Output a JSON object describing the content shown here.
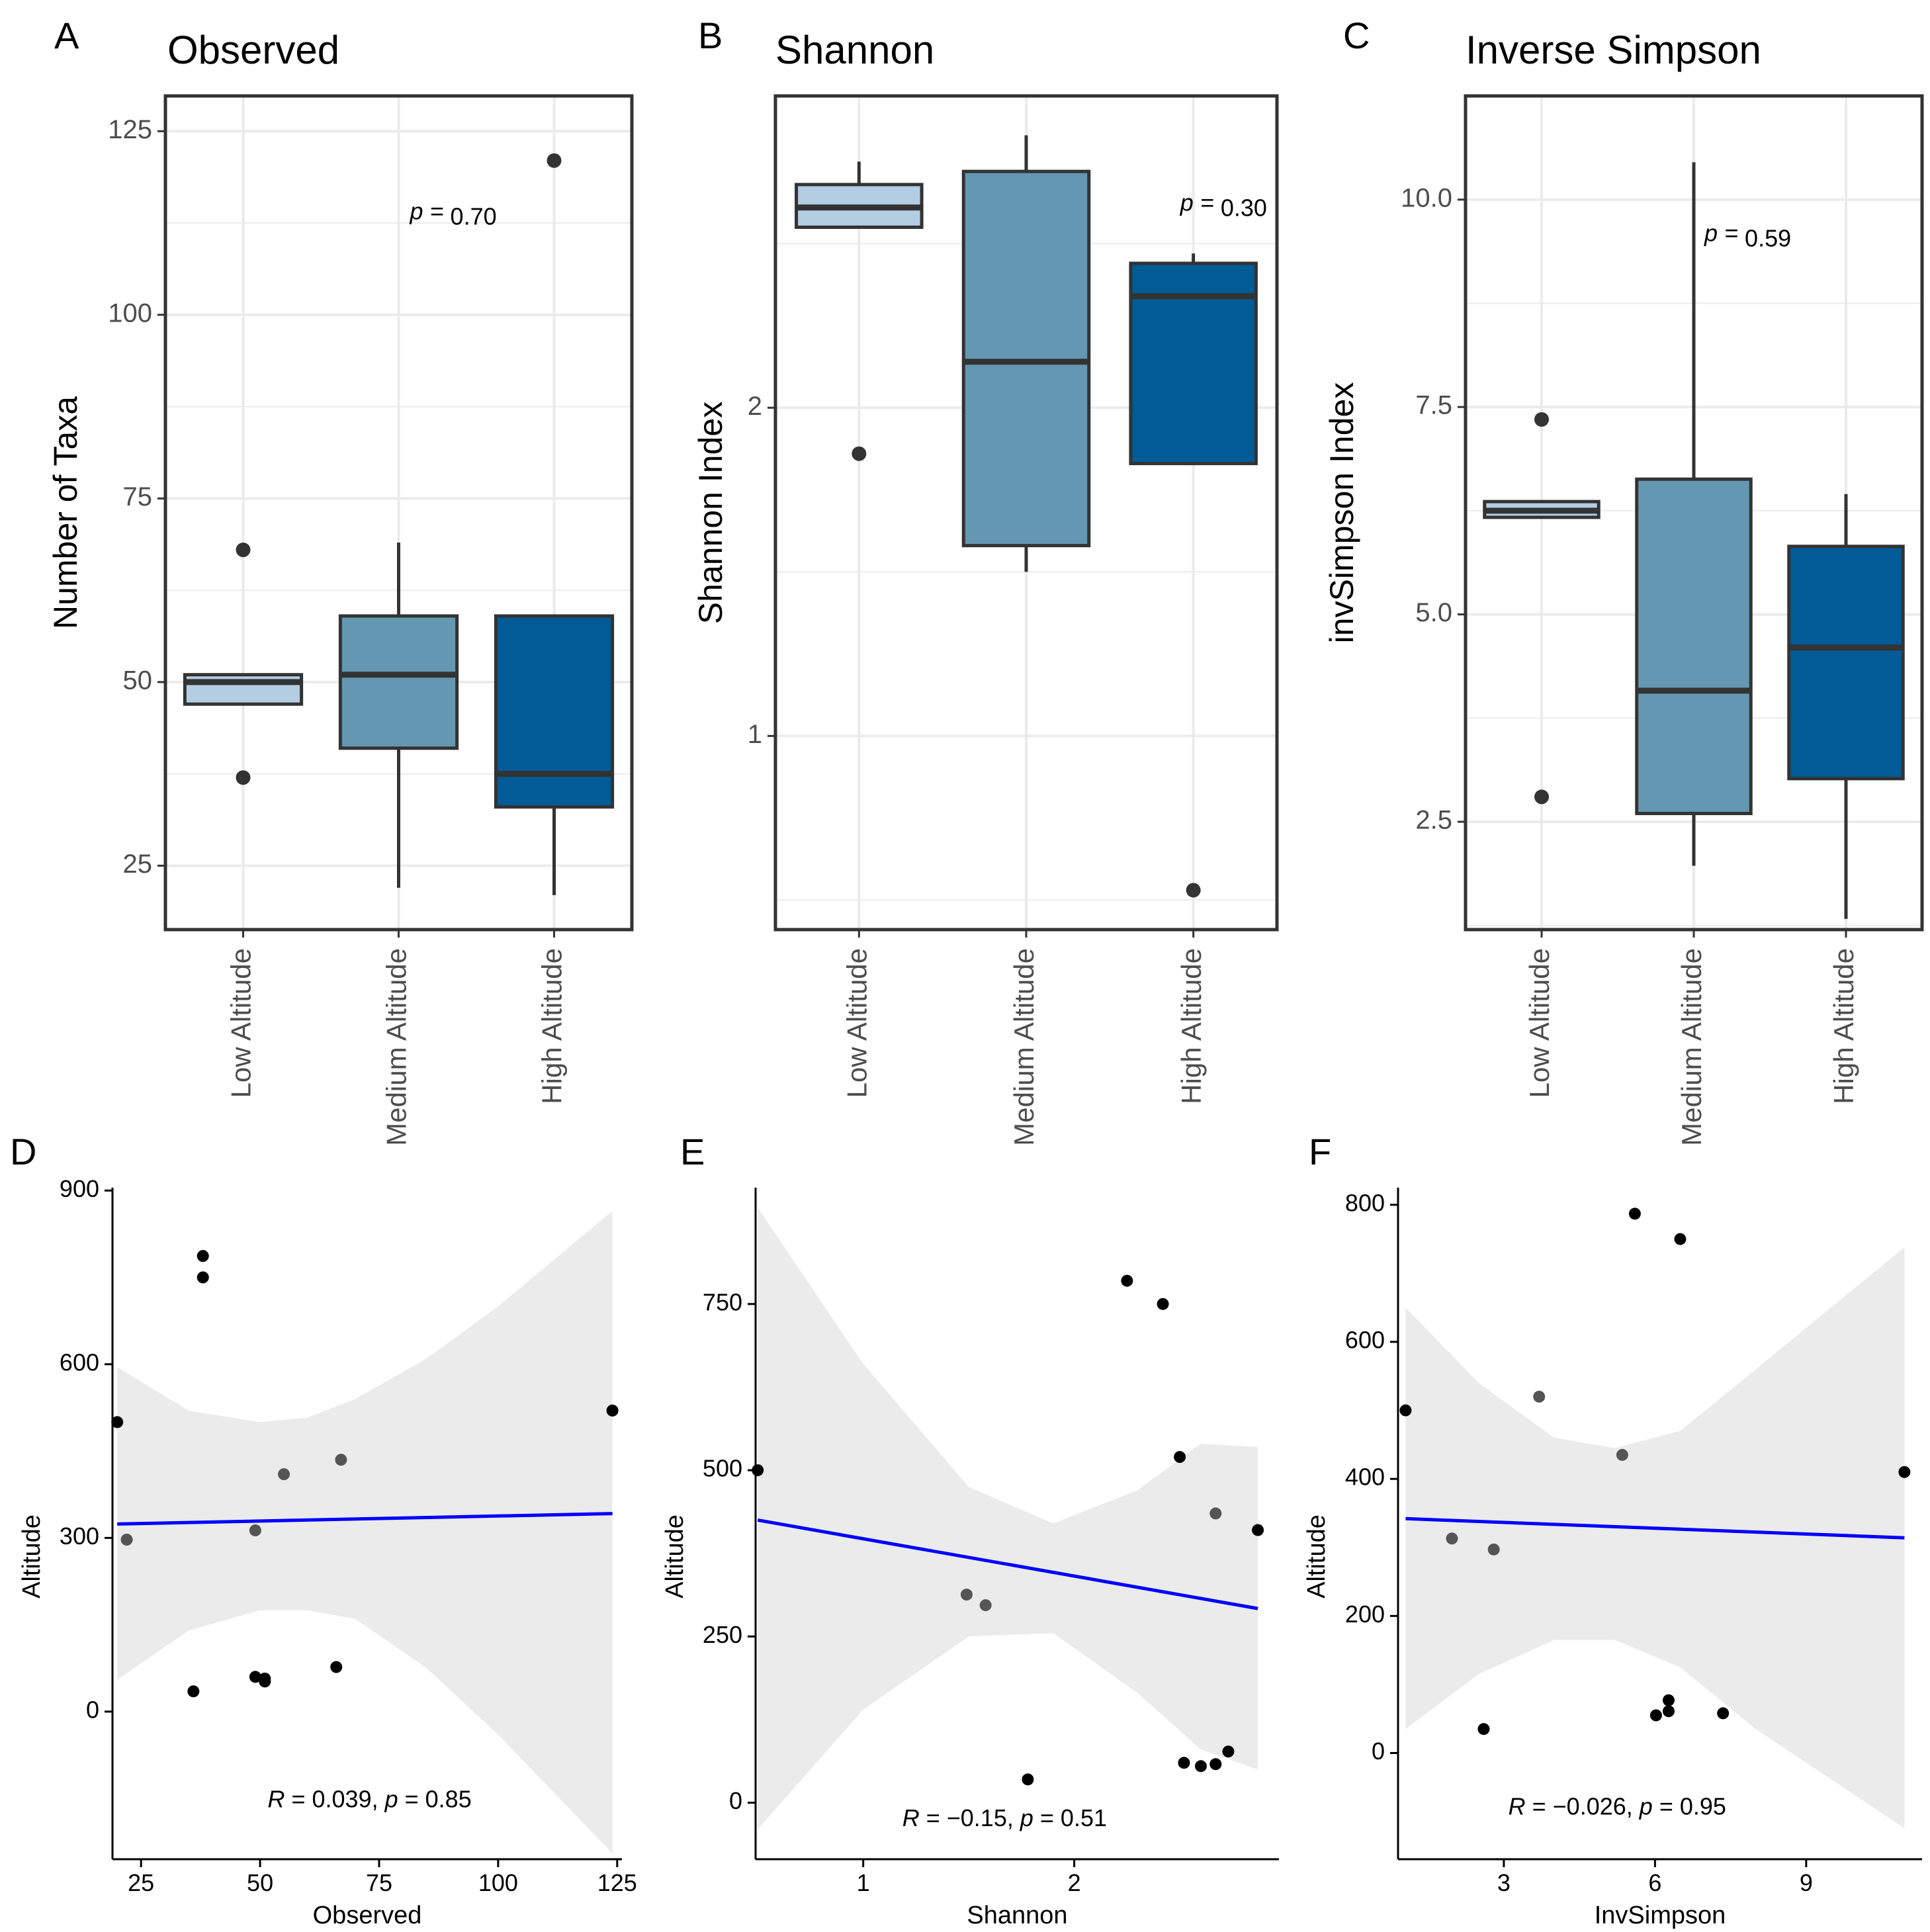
{
  "chart_data": [
    {
      "type": "box",
      "panel_label": "A",
      "title": "Observed",
      "xlabel": "",
      "ylabel": "Number of Taxa",
      "ylim": [
        16.3,
        129.8
      ],
      "yticks": [
        25,
        50,
        75,
        100,
        125
      ],
      "ytick_labels": [
        "25",
        "50",
        "75",
        "100",
        "125"
      ],
      "yminor": [
        37.5,
        62.5,
        87.5,
        112.5
      ],
      "categories": [
        "Low Altitude",
        "Medium Altitude",
        "High Altitude"
      ],
      "colors": [
        "#b3cde3",
        "#6497b1",
        "#005b96"
      ],
      "boxes": [
        {
          "q1": 47,
          "median": 50,
          "q3": 51,
          "whisker_low": 47,
          "whisker_high": 51,
          "outliers": [
            68,
            37
          ]
        },
        {
          "q1": 41,
          "median": 51,
          "q3": 59,
          "whisker_low": 22,
          "whisker_high": 69,
          "outliers": []
        },
        {
          "q1": 33,
          "median": 37.5,
          "q3": 59,
          "whisker_low": 21,
          "whisker_high": 59,
          "outliers": [
            121
          ]
        }
      ],
      "annotation": {
        "p_label": "p =",
        "p_value": "0.70",
        "x_cat": 1.2,
        "y": 113
      }
    },
    {
      "type": "box",
      "panel_label": "B",
      "title": "Shannon",
      "xlabel": "",
      "ylabel": "Shannon Index",
      "ylim": [
        0.41,
        2.95
      ],
      "yticks": [
        1,
        2
      ],
      "ytick_labels": [
        "1",
        "2"
      ],
      "yminor": [
        0.5,
        1.5,
        2.5
      ],
      "categories": [
        "Low Altitude",
        "Medium Altitude",
        "High Altitude"
      ],
      "colors": [
        "#b3cde3",
        "#6497b1",
        "#005b96"
      ],
      "boxes": [
        {
          "q1": 2.55,
          "median": 2.61,
          "q3": 2.68,
          "whisker_low": 2.55,
          "whisker_high": 2.75,
          "outliers": [
            1.86
          ]
        },
        {
          "q1": 1.58,
          "median": 2.14,
          "q3": 2.72,
          "whisker_low": 1.5,
          "whisker_high": 2.83,
          "outliers": []
        },
        {
          "q1": 1.83,
          "median": 2.34,
          "q3": 2.44,
          "whisker_low": 1.83,
          "whisker_high": 2.47,
          "outliers": [
            0.53
          ]
        }
      ],
      "annotation": {
        "p_label": "p =",
        "p_value": "0.30",
        "x_cat": 2.04,
        "y": 2.6
      }
    },
    {
      "type": "box",
      "panel_label": "C",
      "title": "Inverse Simpson",
      "xlabel": "",
      "ylabel": "invSimpson Index",
      "ylim": [
        1.2,
        11.25
      ],
      "yticks": [
        2.5,
        5.0,
        7.5,
        10.0
      ],
      "ytick_labels": [
        "2.5",
        "5.0",
        "7.5",
        "10.0"
      ],
      "yminor": [
        1.25,
        3.75,
        6.25,
        8.75
      ],
      "categories": [
        "Low Altitude",
        "Medium Altitude",
        "High Altitude"
      ],
      "colors": [
        "#b3cde3",
        "#6497b1",
        "#005b96"
      ],
      "boxes": [
        {
          "q1": 6.17,
          "median": 6.25,
          "q3": 6.36,
          "whisker_low": 6.17,
          "whisker_high": 6.36,
          "outliers": [
            7.35,
            2.8
          ]
        },
        {
          "q1": 2.6,
          "median": 4.08,
          "q3": 6.63,
          "whisker_low": 1.97,
          "whisker_high": 10.45,
          "outliers": []
        },
        {
          "q1": 3.02,
          "median": 4.6,
          "q3": 5.82,
          "whisker_low": 1.33,
          "whisker_high": 6.45,
          "outliers": []
        }
      ],
      "annotation": {
        "p_label": "p =",
        "p_value": "0.59",
        "x_cat": 1.2,
        "y": 9.5
      }
    },
    {
      "type": "scatter",
      "panel_label": "D",
      "title": "",
      "xlabel": "Observed",
      "ylabel": "Altitude",
      "xlim": [
        19,
        126
      ],
      "ylim": [
        -255,
        905
      ],
      "xticks": [
        25,
        50,
        75,
        100,
        125
      ],
      "xtick_labels": [
        "25",
        "50",
        "75",
        "100",
        "125"
      ],
      "yticks": [
        0,
        300,
        600,
        900
      ],
      "ytick_labels": [
        "0",
        "300",
        "600",
        "900"
      ],
      "points": [
        {
          "x": 38,
          "y": 787,
          "shade": "dark"
        },
        {
          "x": 38,
          "y": 750,
          "shade": "dark"
        },
        {
          "x": 20,
          "y": 500,
          "shade": "dark"
        },
        {
          "x": 124,
          "y": 520,
          "shade": "dark"
        },
        {
          "x": 55,
          "y": 410,
          "shade": "mid"
        },
        {
          "x": 67,
          "y": 435,
          "shade": "mid"
        },
        {
          "x": 49,
          "y": 313,
          "shade": "mid"
        },
        {
          "x": 22,
          "y": 297,
          "shade": "mid"
        },
        {
          "x": 36,
          "y": 35,
          "shade": "dark"
        },
        {
          "x": 49,
          "y": 60,
          "shade": "dark"
        },
        {
          "x": 51,
          "y": 57,
          "shade": "dark"
        },
        {
          "x": 51,
          "y": 52,
          "shade": "dark"
        },
        {
          "x": 66,
          "y": 77,
          "shade": "dark"
        }
      ],
      "fit": {
        "x": [
          20,
          124
        ],
        "y": [
          324,
          342
        ]
      },
      "ci": {
        "x": [
          20,
          35,
          50,
          60,
          70,
          85,
          100,
          124
        ],
        "upper": [
          595,
          520,
          500,
          508,
          540,
          610,
          700,
          865
        ],
        "lower": [
          55,
          140,
          175,
          175,
          160,
          75,
          -40,
          -245
        ]
      },
      "annotation": {
        "r_label": "R",
        "r_value": " = 0.039, ",
        "p_label": "p",
        "p_value": " = 0.85",
        "x": 73,
        "y": -165
      }
    },
    {
      "type": "scatter",
      "panel_label": "E",
      "title": "",
      "xlabel": "Shannon",
      "ylabel": "Altitude",
      "xlim": [
        0.49,
        2.97
      ],
      "ylim": [
        -85,
        925
      ],
      "xticks": [
        1,
        2
      ],
      "xtick_labels": [
        "1",
        "2"
      ],
      "yticks": [
        0,
        250,
        500,
        750
      ],
      "ytick_labels": [
        "0",
        "250",
        "500",
        "750"
      ],
      "points": [
        {
          "x": 2.25,
          "y": 785,
          "shade": "dark"
        },
        {
          "x": 2.42,
          "y": 750,
          "shade": "dark"
        },
        {
          "x": 0.5,
          "y": 500,
          "shade": "dark"
        },
        {
          "x": 2.5,
          "y": 520,
          "shade": "dark"
        },
        {
          "x": 2.67,
          "y": 435,
          "shade": "mid"
        },
        {
          "x": 2.87,
          "y": 410,
          "shade": "dark"
        },
        {
          "x": 1.49,
          "y": 313,
          "shade": "mid"
        },
        {
          "x": 1.58,
          "y": 297,
          "shade": "mid"
        },
        {
          "x": 1.78,
          "y": 35,
          "shade": "dark"
        },
        {
          "x": 2.52,
          "y": 60,
          "shade": "dark"
        },
        {
          "x": 2.6,
          "y": 55,
          "shade": "dark"
        },
        {
          "x": 2.67,
          "y": 58,
          "shade": "dark"
        },
        {
          "x": 2.73,
          "y": 77,
          "shade": "dark"
        }
      ],
      "fit": {
        "x": [
          0.5,
          2.87
        ],
        "y": [
          425,
          292
        ]
      },
      "ci": {
        "x": [
          0.5,
          1.0,
          1.5,
          1.9,
          2.3,
          2.6,
          2.87
        ],
        "upper": [
          895,
          660,
          475,
          420,
          470,
          540,
          535
        ],
        "lower": [
          -40,
          140,
          250,
          255,
          165,
          80,
          50
        ]
      },
      "annotation": {
        "r_label": "R",
        "r_value": " = −0.15, ",
        "p_label": "p",
        "p_value": " = 0.51",
        "x": 1.67,
        "y": -35
      }
    },
    {
      "type": "scatter",
      "panel_label": "F",
      "title": "",
      "xlabel": "InvSimpson",
      "ylabel": "Altitude",
      "xlim": [
        0.9,
        11.3
      ],
      "ylim": [
        -155,
        825
      ],
      "xticks": [
        3,
        6,
        9
      ],
      "xtick_labels": [
        "3",
        "6",
        "9"
      ],
      "yticks": [
        0,
        200,
        400,
        600,
        800
      ],
      "ytick_labels": [
        "0",
        "200",
        "400",
        "600",
        "800"
      ],
      "points": [
        {
          "x": 5.6,
          "y": 787,
          "shade": "dark"
        },
        {
          "x": 6.5,
          "y": 750,
          "shade": "dark"
        },
        {
          "x": 1.05,
          "y": 500,
          "shade": "dark"
        },
        {
          "x": 3.7,
          "y": 520,
          "shade": "mid"
        },
        {
          "x": 5.35,
          "y": 435,
          "shade": "mid"
        },
        {
          "x": 10.95,
          "y": 410,
          "shade": "dark"
        },
        {
          "x": 1.97,
          "y": 313,
          "shade": "mid"
        },
        {
          "x": 2.8,
          "y": 297,
          "shade": "mid"
        },
        {
          "x": 2.6,
          "y": 35,
          "shade": "dark"
        },
        {
          "x": 6.02,
          "y": 55,
          "shade": "dark"
        },
        {
          "x": 6.27,
          "y": 61,
          "shade": "dark"
        },
        {
          "x": 6.27,
          "y": 77,
          "shade": "dark"
        },
        {
          "x": 7.35,
          "y": 58,
          "shade": "dark"
        }
      ],
      "fit": {
        "x": [
          1.05,
          10.95
        ],
        "y": [
          342,
          314
        ]
      },
      "ci": {
        "x": [
          1.05,
          2.5,
          4.0,
          5.2,
          6.5,
          8.0,
          10.95
        ],
        "upper": [
          650,
          540,
          460,
          445,
          470,
          560,
          738
        ],
        "lower": [
          35,
          115,
          165,
          165,
          125,
          35,
          -110
        ]
      },
      "annotation": {
        "r_label": "R",
        "r_value": " = −0.026, ",
        "p_label": "p",
        "p_value": " = 0.95",
        "x": 5.25,
        "y": -90
      }
    }
  ]
}
